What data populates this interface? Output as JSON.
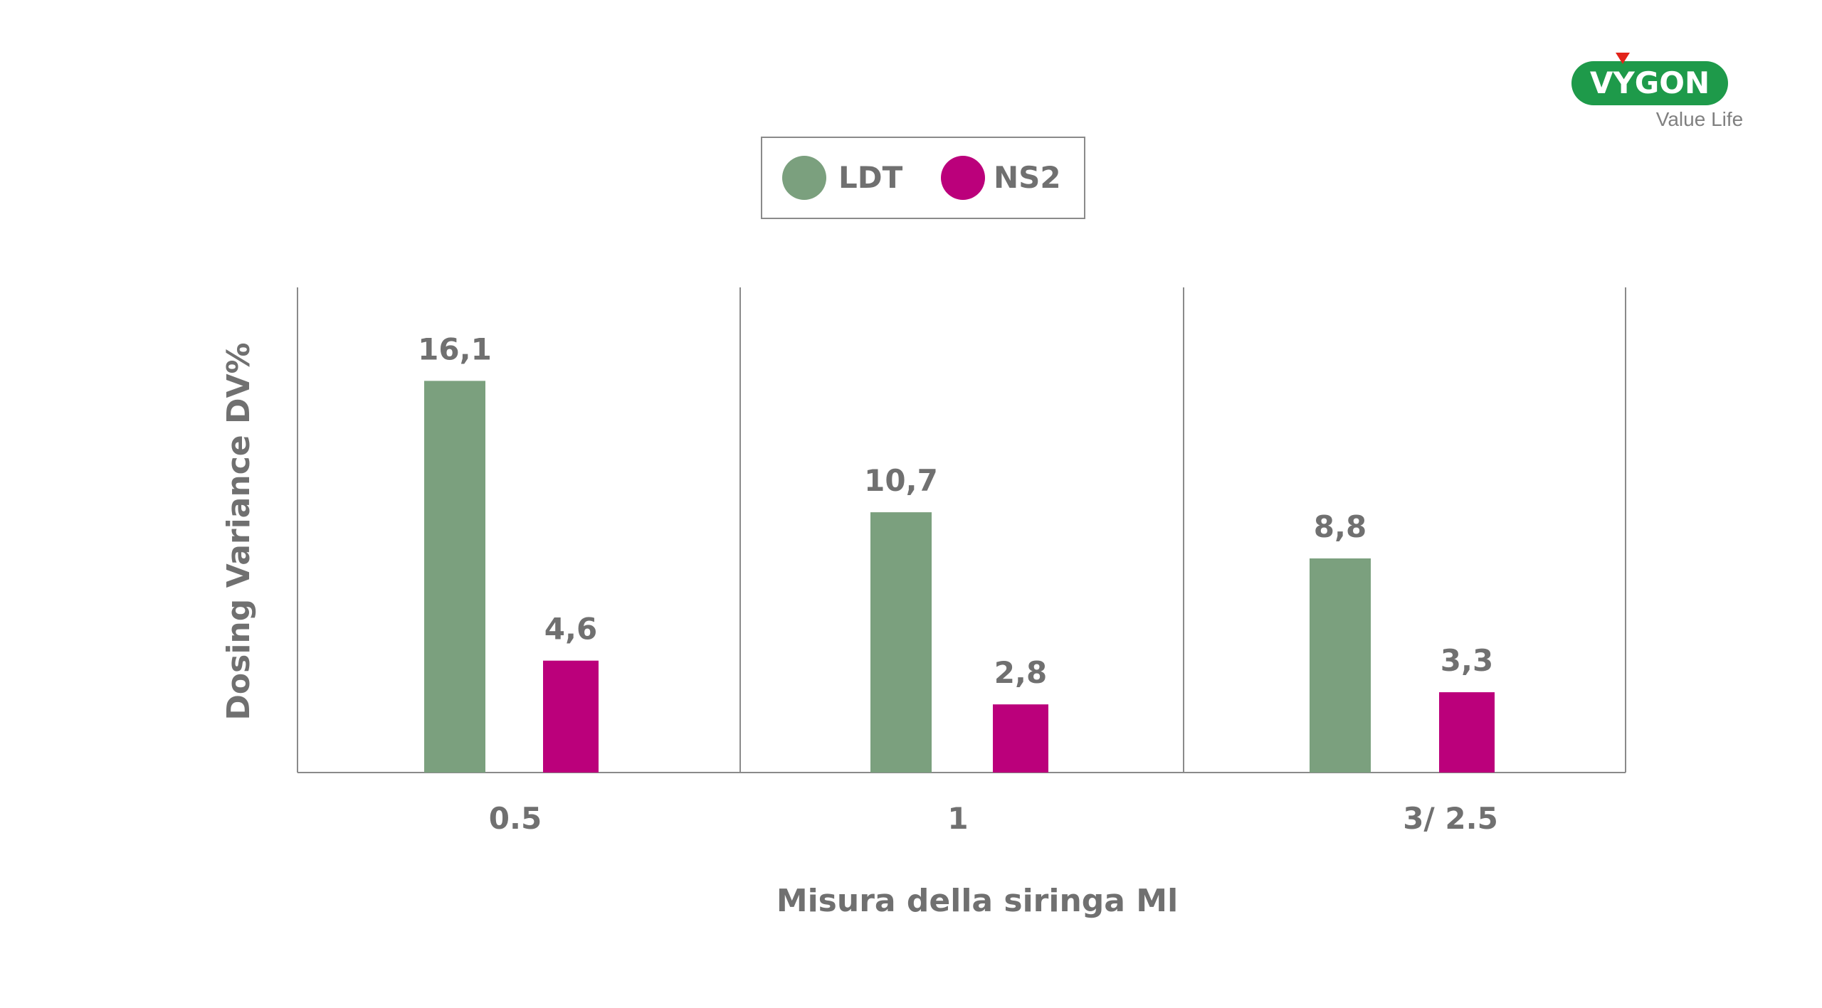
{
  "logo": {
    "brand": "VYGON",
    "tagline": "Value Life",
    "brand_color": "#1e9a4a",
    "accent_color": "#e2231a"
  },
  "chart_data": {
    "type": "bar",
    "categories": [
      "0.5",
      "1",
      "3/ 2.5"
    ],
    "series": [
      {
        "name": "LDT",
        "values": [
          16.1,
          10.7,
          8.8
        ],
        "labels": [
          "16,1",
          "10,7",
          "8,8"
        ],
        "color": "#7ba07e"
      },
      {
        "name": "NS2",
        "values": [
          4.6,
          2.8,
          3.3
        ],
        "labels": [
          "4,6",
          "2,8",
          "3,3"
        ],
        "color": "#bb007b"
      }
    ],
    "title": "",
    "xlabel": "Misura della siringa Ml",
    "ylabel": "Dosing Variance DV%",
    "ylim": [
      0,
      20
    ],
    "grid": false,
    "legend_position": "top-center",
    "text_color": "#707070",
    "axis_color": "#8a8a8a"
  }
}
